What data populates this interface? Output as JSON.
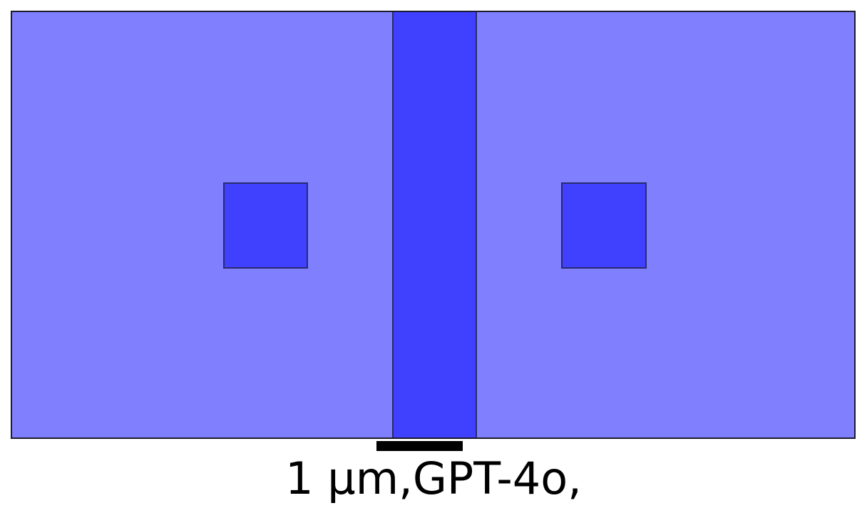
{
  "colors": {
    "background_region": "#8080ff",
    "highlight_region": "#4040ff",
    "outline": "#2a2a6e",
    "scale_bar": "#000000"
  },
  "caption": "1 μm,GPT-4o,"
}
